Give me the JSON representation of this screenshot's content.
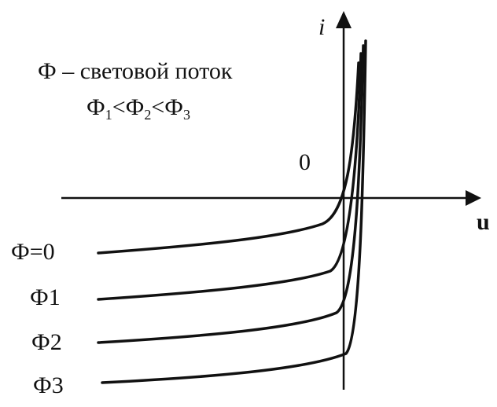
{
  "axes": {
    "y_label": "i",
    "x_label": "u",
    "origin": "0"
  },
  "legend": {
    "title": "Ф – световой поток",
    "condition": [
      "Ф",
      "1",
      "<Ф",
      "2",
      "<Ф",
      "3"
    ]
  },
  "curves": [
    {
      "label": "Ф=0"
    },
    {
      "label": "Ф1"
    },
    {
      "label": "Ф2"
    },
    {
      "label": "Ф3"
    }
  ]
}
